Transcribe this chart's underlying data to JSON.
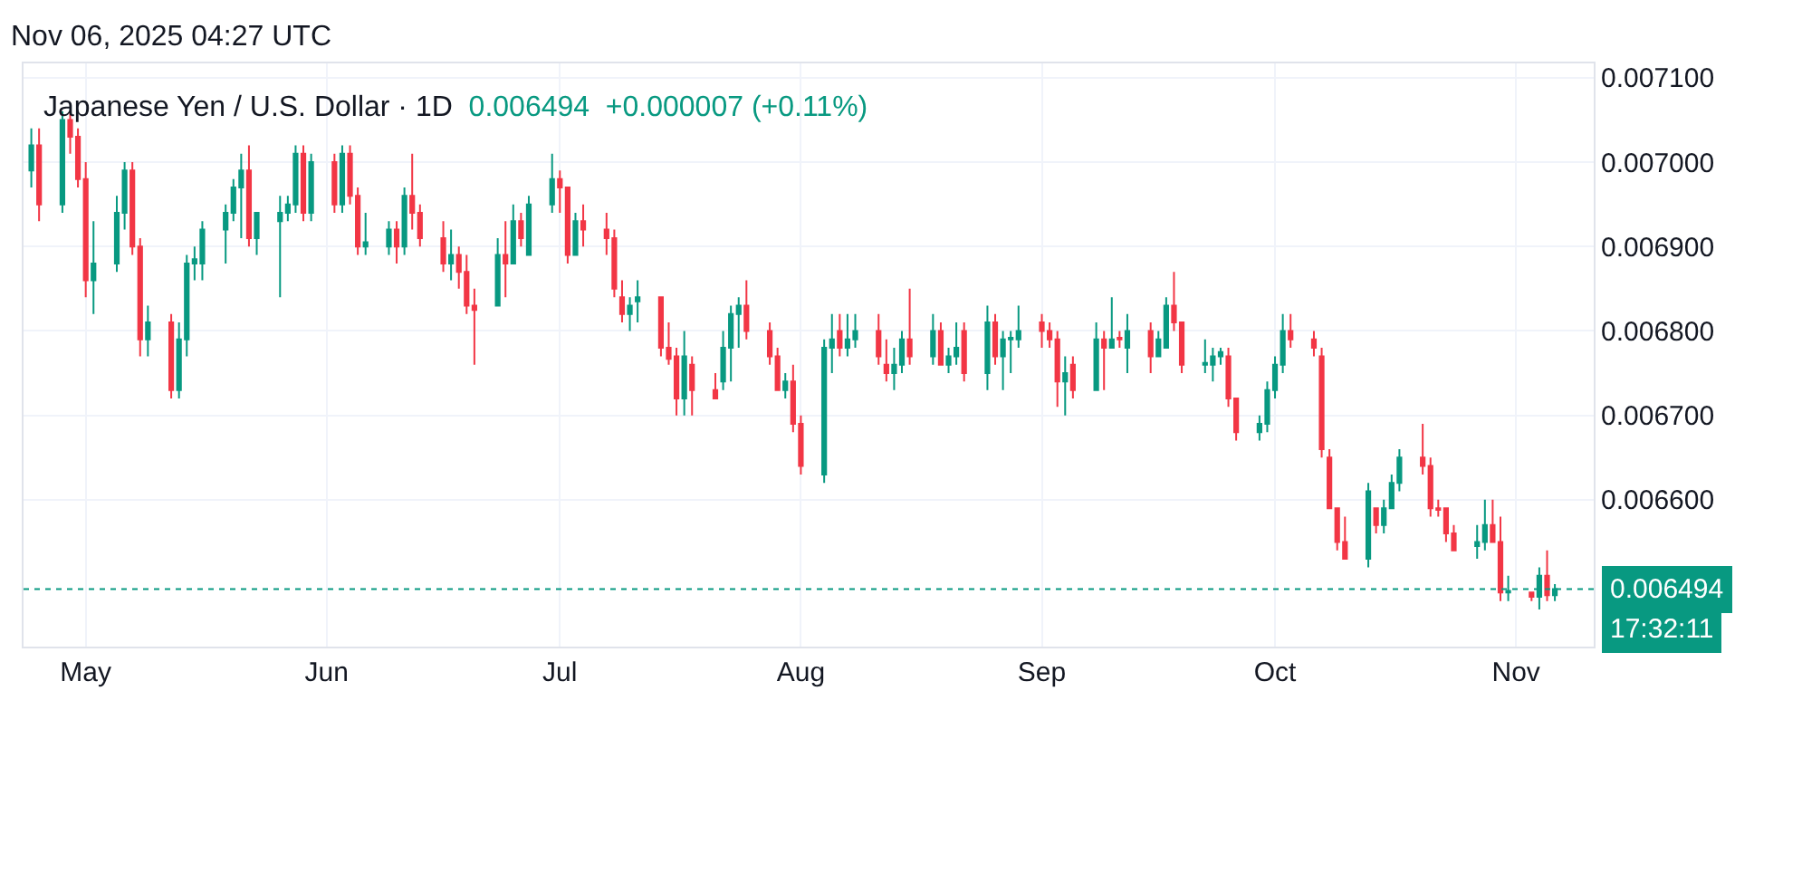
{
  "chart_data": {
    "type": "candlestick",
    "title": "Japanese Yen / U.S. Dollar · 1D",
    "subtitle": "0.006494  +0.000007 (+0.11%)",
    "annotations": [
      "Nov 06, 2025 04:27 UTC",
      "17:32:11"
    ],
    "x": [
      "2025-04-24",
      "2025-04-25",
      "2025-04-28",
      "2025-04-29",
      "2025-04-30",
      "2025-05-01",
      "2025-05-02",
      "2025-05-05",
      "2025-05-06",
      "2025-05-07",
      "2025-05-08",
      "2025-05-09",
      "2025-05-12",
      "2025-05-13",
      "2025-05-14",
      "2025-05-15",
      "2025-05-16",
      "2025-05-19",
      "2025-05-20",
      "2025-05-21",
      "2025-05-22",
      "2025-05-23",
      "2025-05-26",
      "2025-05-27",
      "2025-05-28",
      "2025-05-29",
      "2025-05-30",
      "2025-06-02",
      "2025-06-03",
      "2025-06-04",
      "2025-06-05",
      "2025-06-06",
      "2025-06-09",
      "2025-06-10",
      "2025-06-11",
      "2025-06-12",
      "2025-06-13",
      "2025-06-16",
      "2025-06-17",
      "2025-06-18",
      "2025-06-19",
      "2025-06-20",
      "2025-06-23",
      "2025-06-24",
      "2025-06-25",
      "2025-06-26",
      "2025-06-27",
      "2025-06-30",
      "2025-07-01",
      "2025-07-02",
      "2025-07-03",
      "2025-07-04",
      "2025-07-07",
      "2025-07-08",
      "2025-07-09",
      "2025-07-10",
      "2025-07-11",
      "2025-07-14",
      "2025-07-15",
      "2025-07-16",
      "2025-07-17",
      "2025-07-18",
      "2025-07-21",
      "2025-07-22",
      "2025-07-23",
      "2025-07-24",
      "2025-07-25",
      "2025-07-28",
      "2025-07-29",
      "2025-07-30",
      "2025-07-31",
      "2025-08-01",
      "2025-08-04",
      "2025-08-05",
      "2025-08-06",
      "2025-08-07",
      "2025-08-08",
      "2025-08-11",
      "2025-08-12",
      "2025-08-13",
      "2025-08-14",
      "2025-08-15",
      "2025-08-18",
      "2025-08-19",
      "2025-08-20",
      "2025-08-21",
      "2025-08-22",
      "2025-08-25",
      "2025-08-26",
      "2025-08-27",
      "2025-08-28",
      "2025-08-29",
      "2025-09-01",
      "2025-09-02",
      "2025-09-03",
      "2025-09-04",
      "2025-09-05",
      "2025-09-08",
      "2025-09-09",
      "2025-09-10",
      "2025-09-11",
      "2025-09-12",
      "2025-09-15",
      "2025-09-16",
      "2025-09-17",
      "2025-09-18",
      "2025-09-19",
      "2025-09-22",
      "2025-09-23",
      "2025-09-24",
      "2025-09-25",
      "2025-09-26",
      "2025-09-29",
      "2025-09-30",
      "2025-10-01",
      "2025-10-02",
      "2025-10-03",
      "2025-10-06",
      "2025-10-07",
      "2025-10-08",
      "2025-10-09",
      "2025-10-10",
      "2025-10-13",
      "2025-10-14",
      "2025-10-15",
      "2025-10-16",
      "2025-10-17",
      "2025-10-20",
      "2025-10-21",
      "2025-10-22",
      "2025-10-23",
      "2025-10-24",
      "2025-10-27",
      "2025-10-28",
      "2025-10-29",
      "2025-10-30",
      "2025-10-31",
      "2025-11-03",
      "2025-11-04",
      "2025-11-05",
      "2025-11-06"
    ],
    "ohlc": [
      [
        0.00699,
        0.00704,
        0.00697,
        0.00702
      ],
      [
        0.00702,
        0.00704,
        0.00693,
        0.00695
      ],
      [
        0.00695,
        0.00706,
        0.00694,
        0.00705
      ],
      [
        0.00705,
        0.00706,
        0.00701,
        0.00703
      ],
      [
        0.00703,
        0.00704,
        0.00697,
        0.00698
      ],
      [
        0.00698,
        0.007,
        0.00684,
        0.00686
      ],
      [
        0.00686,
        0.00693,
        0.00682,
        0.00688
      ],
      [
        0.00688,
        0.00696,
        0.00687,
        0.00694
      ],
      [
        0.00694,
        0.007,
        0.00692,
        0.00699
      ],
      [
        0.00699,
        0.007,
        0.00689,
        0.0069
      ],
      [
        0.0069,
        0.00691,
        0.00677,
        0.00679
      ],
      [
        0.00679,
        0.00683,
        0.00677,
        0.00681
      ],
      [
        0.00681,
        0.00682,
        0.00672,
        0.00673
      ],
      [
        0.00673,
        0.00681,
        0.00672,
        0.00679
      ],
      [
        0.00679,
        0.00689,
        0.00677,
        0.00688
      ],
      [
        0.00688,
        0.0069,
        0.00686,
        0.006885
      ],
      [
        0.00688,
        0.00693,
        0.00686,
        0.00692
      ],
      [
        0.00692,
        0.00695,
        0.00688,
        0.00694
      ],
      [
        0.00694,
        0.00698,
        0.00693,
        0.00697
      ],
      [
        0.00697,
        0.00701,
        0.00691,
        0.00699
      ],
      [
        0.00699,
        0.00702,
        0.0069,
        0.00691
      ],
      [
        0.00691,
        0.00694,
        0.00689,
        0.00694
      ],
      [
        0.00693,
        0.00696,
        0.00684,
        0.00694
      ],
      [
        0.00694,
        0.00696,
        0.00693,
        0.00695
      ],
      [
        0.00695,
        0.00702,
        0.00694,
        0.00701
      ],
      [
        0.00701,
        0.00702,
        0.00693,
        0.00694
      ],
      [
        0.00694,
        0.00701,
        0.00693,
        0.007
      ],
      [
        0.007,
        0.00701,
        0.00694,
        0.00695
      ],
      [
        0.00695,
        0.00702,
        0.00694,
        0.00701
      ],
      [
        0.00701,
        0.00702,
        0.00695,
        0.00696
      ],
      [
        0.00696,
        0.00697,
        0.00689,
        0.0069
      ],
      [
        0.0069,
        0.00694,
        0.00689,
        0.006905
      ],
      [
        0.0069,
        0.00693,
        0.00689,
        0.00692
      ],
      [
        0.00692,
        0.00693,
        0.00688,
        0.0069
      ],
      [
        0.0069,
        0.00697,
        0.00689,
        0.00696
      ],
      [
        0.00696,
        0.00701,
        0.00692,
        0.00694
      ],
      [
        0.00694,
        0.00695,
        0.0069,
        0.00691
      ],
      [
        0.00691,
        0.00693,
        0.00687,
        0.00688
      ],
      [
        0.00688,
        0.00692,
        0.00686,
        0.00689
      ],
      [
        0.00689,
        0.0069,
        0.00685,
        0.00687
      ],
      [
        0.00687,
        0.00689,
        0.00682,
        0.00683
      ],
      [
        0.00683,
        0.00685,
        0.00676,
        0.006825
      ],
      [
        0.00683,
        0.00691,
        0.00683,
        0.00689
      ],
      [
        0.00689,
        0.00693,
        0.00684,
        0.00688
      ],
      [
        0.00688,
        0.00695,
        0.00688,
        0.00693
      ],
      [
        0.00693,
        0.00694,
        0.0069,
        0.00691
      ],
      [
        0.00689,
        0.00696,
        0.00689,
        0.00695
      ],
      [
        0.00695,
        0.00701,
        0.00694,
        0.00698
      ],
      [
        0.00698,
        0.00699,
        0.00694,
        0.00697
      ],
      [
        0.00697,
        0.00697,
        0.00688,
        0.00689
      ],
      [
        0.00689,
        0.00694,
        0.00689,
        0.00693
      ],
      [
        0.00693,
        0.00695,
        0.0069,
        0.00692
      ],
      [
        0.00692,
        0.00694,
        0.00689,
        0.00691
      ],
      [
        0.00691,
        0.00692,
        0.00684,
        0.00685
      ],
      [
        0.00684,
        0.00686,
        0.00681,
        0.00682
      ],
      [
        0.00682,
        0.00684,
        0.0068,
        0.00683
      ],
      [
        0.006835,
        0.00686,
        0.00681,
        0.00684
      ],
      [
        0.00684,
        0.00684,
        0.00677,
        0.00678
      ],
      [
        0.00678,
        0.00681,
        0.00676,
        0.006767
      ],
      [
        0.00677,
        0.00678,
        0.0067,
        0.00672
      ],
      [
        0.00672,
        0.0068,
        0.0067,
        0.00677
      ],
      [
        0.00676,
        0.00677,
        0.0067,
        0.00673
      ],
      [
        0.00673,
        0.00675,
        0.00672,
        0.00672
      ],
      [
        0.00674,
        0.0068,
        0.00673,
        0.00678
      ],
      [
        0.00678,
        0.00683,
        0.00674,
        0.00682
      ],
      [
        0.00682,
        0.00684,
        0.00678,
        0.00683
      ],
      [
        0.00683,
        0.00686,
        0.00679,
        0.0068
      ],
      [
        0.0068,
        0.00681,
        0.00676,
        0.00677
      ],
      [
        0.00677,
        0.00678,
        0.00673,
        0.00673
      ],
      [
        0.00673,
        0.00675,
        0.00672,
        0.00674
      ],
      [
        0.00674,
        0.00676,
        0.00668,
        0.00669
      ],
      [
        0.00669,
        0.0067,
        0.00663,
        0.00664
      ],
      [
        0.00663,
        0.00679,
        0.00662,
        0.00678
      ],
      [
        0.00678,
        0.00682,
        0.00675,
        0.00679
      ],
      [
        0.0068,
        0.00682,
        0.00677,
        0.00678
      ],
      [
        0.00678,
        0.00682,
        0.00677,
        0.00679
      ],
      [
        0.00679,
        0.00682,
        0.00678,
        0.0068
      ],
      [
        0.0068,
        0.00682,
        0.00676,
        0.00677
      ],
      [
        0.00676,
        0.00679,
        0.00674,
        0.00675
      ],
      [
        0.00675,
        0.00678,
        0.00673,
        0.00676
      ],
      [
        0.00676,
        0.0068,
        0.00675,
        0.00679
      ],
      [
        0.00679,
        0.00685,
        0.00676,
        0.00677
      ],
      [
        0.00677,
        0.00682,
        0.00676,
        0.0068
      ],
      [
        0.0068,
        0.00681,
        0.00676,
        0.00676
      ],
      [
        0.00676,
        0.00678,
        0.00675,
        0.00677
      ],
      [
        0.00677,
        0.00681,
        0.00676,
        0.00678
      ],
      [
        0.0068,
        0.00681,
        0.00674,
        0.00675
      ],
      [
        0.00675,
        0.00683,
        0.00673,
        0.00681
      ],
      [
        0.00681,
        0.00682,
        0.00676,
        0.00677
      ],
      [
        0.00677,
        0.0068,
        0.00673,
        0.00679
      ],
      [
        0.00679,
        0.0068,
        0.00675,
        0.006792
      ],
      [
        0.00679,
        0.00683,
        0.00678,
        0.0068
      ],
      [
        0.00681,
        0.00682,
        0.00678,
        0.0068
      ],
      [
        0.0068,
        0.00681,
        0.00678,
        0.00679
      ],
      [
        0.00679,
        0.0068,
        0.00671,
        0.00674
      ],
      [
        0.00674,
        0.00677,
        0.0067,
        0.00675
      ],
      [
        0.00676,
        0.00677,
        0.00672,
        0.00673
      ],
      [
        0.00673,
        0.00681,
        0.00673,
        0.00679
      ],
      [
        0.00679,
        0.0068,
        0.00673,
        0.00678
      ],
      [
        0.00678,
        0.00684,
        0.00678,
        0.00679
      ],
      [
        0.006792,
        0.0068,
        0.00678,
        0.00679
      ],
      [
        0.00678,
        0.00682,
        0.00675,
        0.0068
      ],
      [
        0.0068,
        0.00681,
        0.00675,
        0.00677
      ],
      [
        0.00677,
        0.0068,
        0.00677,
        0.00679
      ],
      [
        0.00678,
        0.00684,
        0.00678,
        0.00683
      ],
      [
        0.00683,
        0.00687,
        0.0068,
        0.00681
      ],
      [
        0.00681,
        0.00681,
        0.00675,
        0.00676
      ],
      [
        0.00676,
        0.00679,
        0.00675,
        0.006762
      ],
      [
        0.00676,
        0.00678,
        0.00674,
        0.00677
      ],
      [
        0.00677,
        0.00678,
        0.00676,
        0.006775
      ],
      [
        0.00677,
        0.00678,
        0.00671,
        0.00672
      ],
      [
        0.00672,
        0.00672,
        0.00667,
        0.00668
      ],
      [
        0.00668,
        0.0067,
        0.00667,
        0.00669
      ],
      [
        0.00669,
        0.00674,
        0.00668,
        0.00673
      ],
      [
        0.00673,
        0.00677,
        0.00672,
        0.00676
      ],
      [
        0.00676,
        0.00682,
        0.00675,
        0.0068
      ],
      [
        0.0068,
        0.00682,
        0.00678,
        0.00679
      ],
      [
        0.00679,
        0.0068,
        0.00677,
        0.00678
      ],
      [
        0.00677,
        0.00678,
        0.00665,
        0.00666
      ],
      [
        0.00665,
        0.00666,
        0.00659,
        0.00659
      ],
      [
        0.00659,
        0.00659,
        0.00654,
        0.00655
      ],
      [
        0.00655,
        0.00658,
        0.00653,
        0.00653
      ],
      [
        0.00653,
        0.00662,
        0.00652,
        0.00661
      ],
      [
        0.00659,
        0.00659,
        0.00656,
        0.00657
      ],
      [
        0.00657,
        0.0066,
        0.00656,
        0.00659
      ],
      [
        0.00659,
        0.00663,
        0.00659,
        0.00662
      ],
      [
        0.00662,
        0.00666,
        0.00661,
        0.00665
      ],
      [
        0.00665,
        0.00669,
        0.00663,
        0.00664
      ],
      [
        0.00664,
        0.00665,
        0.00658,
        0.00659
      ],
      [
        0.00659,
        0.0066,
        0.00658,
        0.006588
      ],
      [
        0.00659,
        0.00659,
        0.00655,
        0.00656
      ],
      [
        0.00656,
        0.00657,
        0.00654,
        0.00654
      ],
      [
        0.006545,
        0.00657,
        0.00653,
        0.00655
      ],
      [
        0.00655,
        0.0066,
        0.00654,
        0.00657
      ],
      [
        0.00657,
        0.0066,
        0.00655,
        0.00655
      ],
      [
        0.00655,
        0.00658,
        0.00648,
        0.00649
      ],
      [
        0.00649,
        0.00651,
        0.00648,
        0.006492
      ],
      [
        0.00649,
        0.00649,
        0.00648,
        0.006485
      ],
      [
        0.006485,
        0.00652,
        0.00647,
        0.00651
      ],
      [
        0.00651,
        0.00654,
        0.00648,
        0.006487
      ],
      [
        0.006487,
        0.0065,
        0.00648,
        0.006494
      ]
    ],
    "xlim": [
      "2025-04-23",
      "2025-11-11"
    ],
    "xticks": [
      {
        "value": "2025-05-01",
        "label": "May"
      },
      {
        "value": "2025-06-01",
        "label": "Jun"
      },
      {
        "value": "2025-07-01",
        "label": "Jul"
      },
      {
        "value": "2025-08-01",
        "label": "Aug"
      },
      {
        "value": "2025-09-01",
        "label": "Sep"
      },
      {
        "value": "2025-10-01",
        "label": "Oct"
      },
      {
        "value": "2025-11-01",
        "label": "Nov"
      }
    ],
    "ylim": [
      0.006426,
      0.007117
    ],
    "yticks": [
      {
        "value": 0.0066,
        "label": "0.006600"
      },
      {
        "value": 0.0067,
        "label": "0.006700"
      },
      {
        "value": 0.0068,
        "label": "0.006800"
      },
      {
        "value": 0.0069,
        "label": "0.006900"
      },
      {
        "value": 0.007,
        "label": "0.007000"
      },
      {
        "value": 0.0071,
        "label": "0.007100"
      }
    ],
    "ref_lines": [
      {
        "axis": "y",
        "value": 0.006494,
        "label": "0.006494",
        "color": "#089981",
        "line_style": "dotted"
      }
    ],
    "grid": true,
    "legend": false
  }
}
